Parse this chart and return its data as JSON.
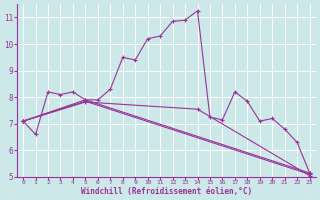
{
  "bg_color": "#cce8e8",
  "grid_color": "#aacccc",
  "line_color": "#993399",
  "marker_color": "#993399",
  "xlabel": "Windchill (Refroidissement éolien,°C)",
  "xlabel_color": "#993399",
  "ylabel_color": "#993399",
  "xlim": [
    -0.5,
    23.5
  ],
  "ylim": [
    5,
    11.5
  ],
  "yticks": [
    5,
    6,
    7,
    8,
    9,
    10,
    11
  ],
  "xticks": [
    0,
    1,
    2,
    3,
    4,
    5,
    6,
    7,
    8,
    9,
    10,
    11,
    12,
    13,
    14,
    15,
    16,
    17,
    18,
    19,
    20,
    21,
    22,
    23
  ],
  "series1": [
    [
      0,
      7.1
    ],
    [
      1,
      6.6
    ],
    [
      2,
      8.2
    ],
    [
      3,
      8.1
    ],
    [
      4,
      8.2
    ],
    [
      5,
      7.9
    ],
    [
      6,
      7.9
    ],
    [
      7,
      8.3
    ],
    [
      8,
      9.5
    ],
    [
      9,
      9.4
    ],
    [
      10,
      10.2
    ],
    [
      11,
      10.3
    ],
    [
      12,
      10.85
    ],
    [
      13,
      10.9
    ],
    [
      14,
      11.25
    ],
    [
      15,
      7.25
    ],
    [
      16,
      7.15
    ],
    [
      17,
      8.2
    ],
    [
      18,
      7.85
    ],
    [
      19,
      7.1
    ],
    [
      20,
      7.2
    ],
    [
      21,
      6.8
    ],
    [
      22,
      6.3
    ],
    [
      23,
      5.15
    ]
  ],
  "series2": [
    [
      0,
      7.1
    ],
    [
      5,
      7.9
    ],
    [
      23,
      5.15
    ]
  ],
  "series3": [
    [
      0,
      7.1
    ],
    [
      5,
      7.85
    ],
    [
      23,
      5.1
    ]
  ],
  "series4": [
    [
      0,
      7.1
    ],
    [
      5,
      7.82
    ],
    [
      14,
      7.55
    ],
    [
      23,
      5.05
    ]
  ]
}
